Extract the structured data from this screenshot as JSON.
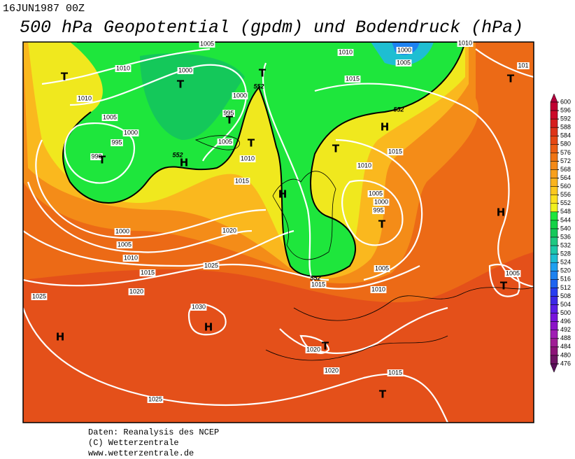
{
  "header": {
    "date": "16JUN1987 00Z",
    "title": "500 hPa Geopotential (gpdm) und Bodendruck (hPa)"
  },
  "footer": {
    "lines": [
      "Daten: Reanalysis des NCEP",
      "(C) Wetterzentrale",
      "www.wetterzentrale.de"
    ]
  },
  "colorbar": {
    "levels": [
      600,
      596,
      592,
      588,
      584,
      580,
      576,
      572,
      568,
      564,
      560,
      556,
      552,
      548,
      544,
      540,
      536,
      532,
      528,
      524,
      520,
      516,
      512,
      508,
      504,
      500,
      496,
      492,
      488,
      484,
      480,
      476
    ],
    "colors": [
      "#b4003c",
      "#c00032",
      "#cc0a28",
      "#d61e1e",
      "#de3418",
      "#e64814",
      "#ec5e14",
      "#f07414",
      "#f48a18",
      "#f8a01c",
      "#fab41e",
      "#fcc81e",
      "#fce01e",
      "#f0f01e",
      "#1ee63c",
      "#14d246",
      "#14c85a",
      "#1ec882",
      "#1ec8aa",
      "#1ebed2",
      "#1ea0f0",
      "#1e82f0",
      "#1e64f0",
      "#283ef0",
      "#3c28e6",
      "#5a1ee6",
      "#7814dc",
      "#8c14c8",
      "#a01eb4",
      "#a01e96",
      "#8c1478",
      "#6e1464",
      "#5a105a"
    ]
  },
  "map": {
    "isobar_labels": [
      "1010",
      "1000",
      "1005",
      "1010",
      "101",
      "1005",
      "1010",
      "1000",
      "1010",
      "1000",
      "995",
      "1015",
      "1005",
      "1000",
      "995",
      "990",
      "1005",
      "1010",
      "1015",
      "1010",
      "1015",
      "1005",
      "1000",
      "995",
      "1020",
      "1000",
      "1005",
      "1010",
      "1025",
      "1015",
      "1005",
      "1015",
      "1010",
      "1020",
      "1025",
      "1005",
      "1030",
      "1020",
      "1020",
      "1015",
      "1025"
    ],
    "contour_labels": [
      "552",
      "552",
      "552",
      "552"
    ],
    "centers": [
      "T",
      "T",
      "T",
      "T",
      "T",
      "T",
      "H",
      "T",
      "T",
      "H",
      "H",
      "T",
      "H",
      "T",
      "H",
      "H",
      "T",
      "T"
    ]
  }
}
